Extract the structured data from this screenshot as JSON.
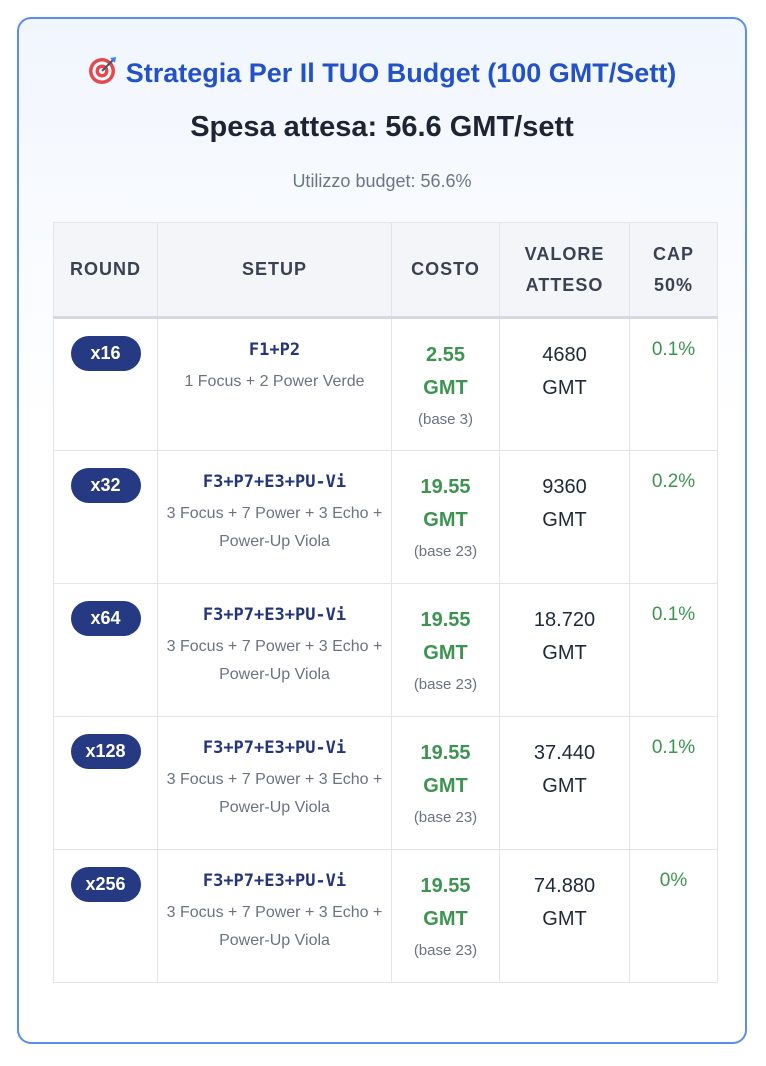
{
  "header": {
    "title": "Strategia Per Il TUO Budget (100 GMT/Sett)",
    "title_icon": "target-icon",
    "subtitle": "Spesa attesa: 56.6 GMT/sett",
    "usage": "Utilizzo budget: 56.6%"
  },
  "table": {
    "headers": {
      "round": "ROUND",
      "setup": "SETUP",
      "cost": "COSTO",
      "value_line1": "VALORE",
      "value_line2": "ATTESO",
      "cap_line1": "CAP",
      "cap_line2": "50%"
    },
    "rows": [
      {
        "round": "x16",
        "setup_code": "F1+P2",
        "setup_desc": "1 Focus + 2 Power Verde",
        "cost_line1": "2.55",
        "cost_line2": "GMT",
        "cost_base": "(base 3)",
        "value_line1": "4680",
        "value_line2": "GMT",
        "cap": "0.1%"
      },
      {
        "round": "x32",
        "setup_code": "F3+P7+E3+PU-Vi",
        "setup_desc": "3 Focus + 7 Power + 3 Echo + Power-Up Viola",
        "cost_line1": "19.55",
        "cost_line2": "GMT",
        "cost_base": "(base 23)",
        "value_line1": "9360",
        "value_line2": "GMT",
        "cap": "0.2%"
      },
      {
        "round": "x64",
        "setup_code": "F3+P7+E3+PU-Vi",
        "setup_desc": "3 Focus + 7 Power + 3 Echo + Power-Up Viola",
        "cost_line1": "19.55",
        "cost_line2": "GMT",
        "cost_base": "(base 23)",
        "value_line1": "18.720",
        "value_line2": "GMT",
        "cap": "0.1%"
      },
      {
        "round": "x128",
        "setup_code": "F3+P7+E3+PU-Vi",
        "setup_desc": "3 Focus + 7 Power + 3 Echo + Power-Up Viola",
        "cost_line1": "19.55",
        "cost_line2": "GMT",
        "cost_base": "(base 23)",
        "value_line1": "37.440",
        "value_line2": "GMT",
        "cap": "0.1%"
      },
      {
        "round": "x256",
        "setup_code": "F3+P7+E3+PU-Vi",
        "setup_desc": "3 Focus + 7 Power + 3 Echo + Power-Up Viola",
        "cost_line1": "19.55",
        "cost_line2": "GMT",
        "cost_base": "(base 23)",
        "value_line1": "74.880",
        "value_line2": "GMT",
        "cap": "0%"
      }
    ]
  },
  "colors": {
    "accent_blue": "#2352c8",
    "badge_navy": "#253a82",
    "positive_green": "#3d9450",
    "border_blue": "#5b8def"
  }
}
